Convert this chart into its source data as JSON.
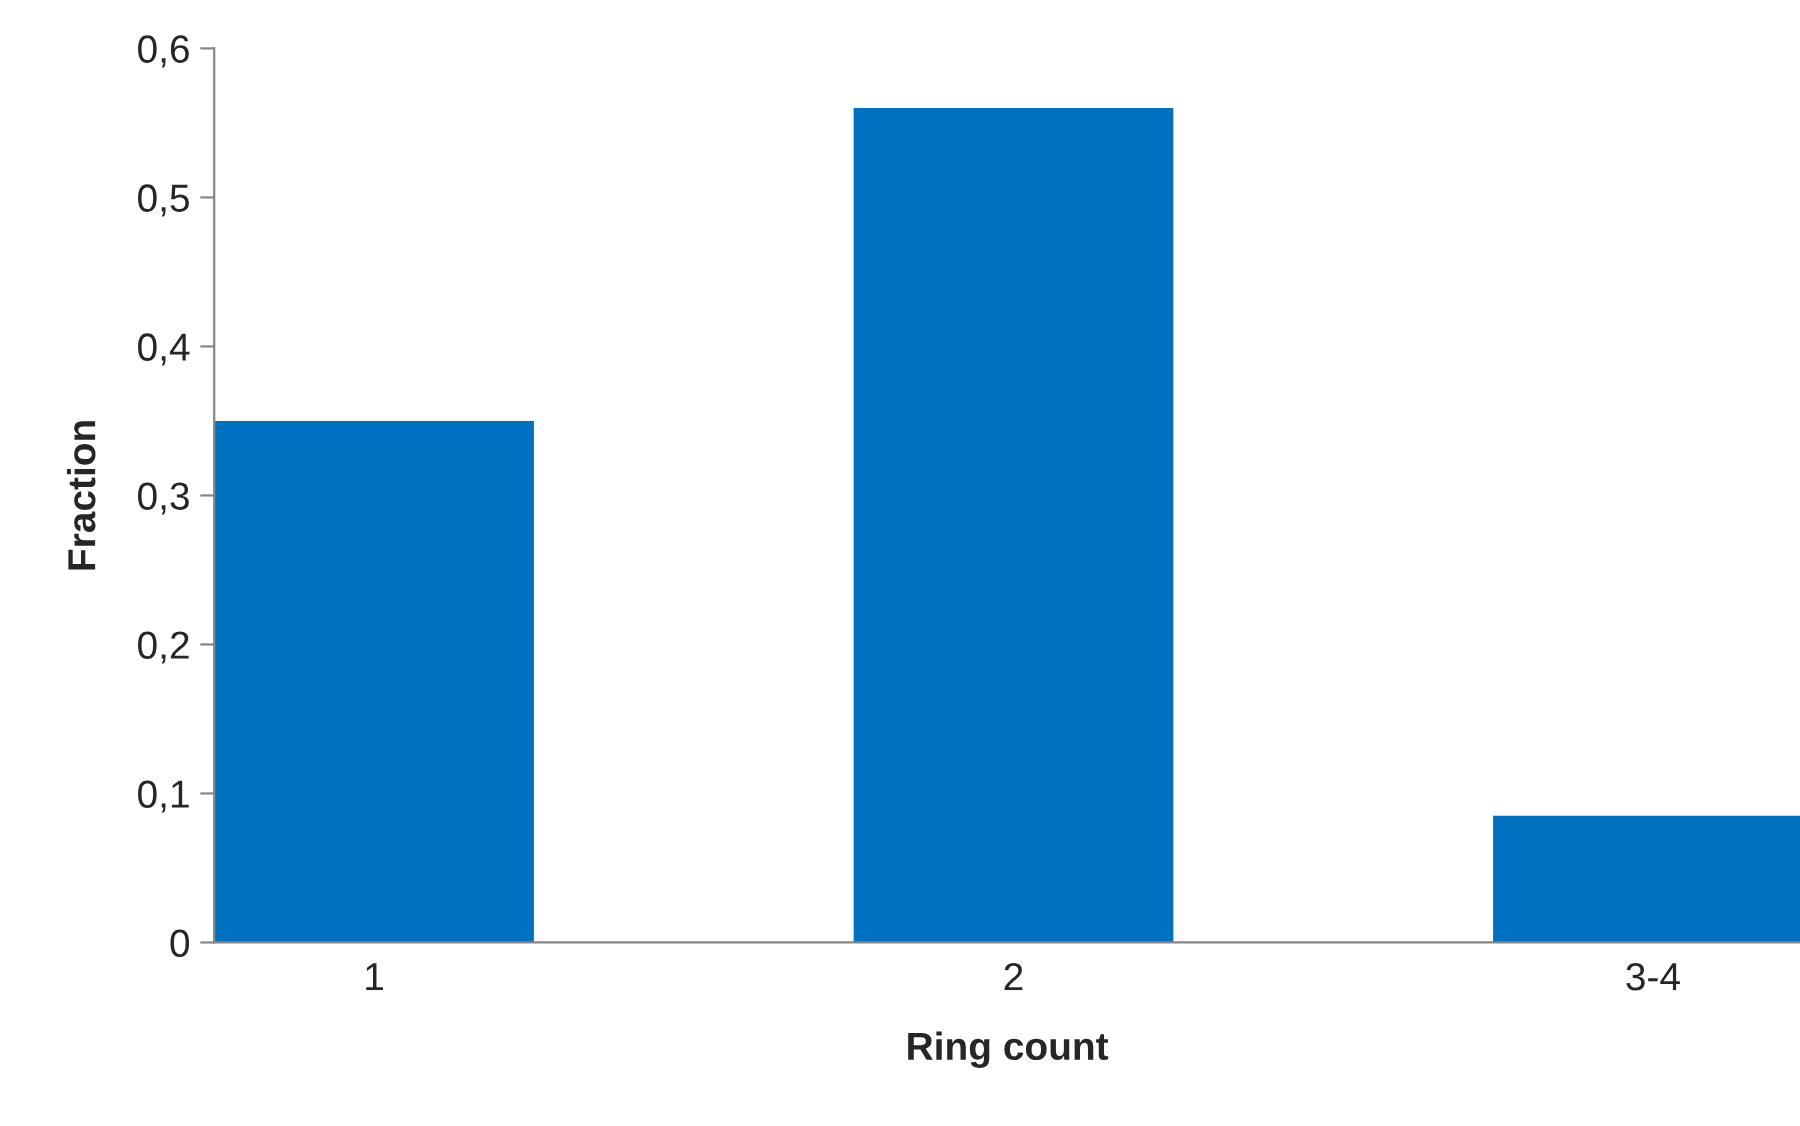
{
  "chart_data": {
    "type": "bar",
    "xlabel": "Ring count",
    "ylabel": "Fraction",
    "categories": [
      "1",
      "2",
      "3-4"
    ],
    "values": [
      0.35,
      0.56,
      0.085
    ],
    "color": "#0070c0",
    "ylim": [
      0,
      0.6
    ],
    "yticks": [
      0,
      {
        "value": 0.1,
        "label": "0,1"
      },
      {
        "value": 0.2,
        "label": "0,2"
      },
      {
        "value": 0.3,
        "label": "0,3"
      },
      {
        "value": 0.4,
        "label": "0,4"
      },
      {
        "value": 0.5,
        "label": "0,5"
      },
      {
        "value": 0.6,
        "label": "0,6"
      }
    ],
    "grid": false,
    "legend": false
  }
}
